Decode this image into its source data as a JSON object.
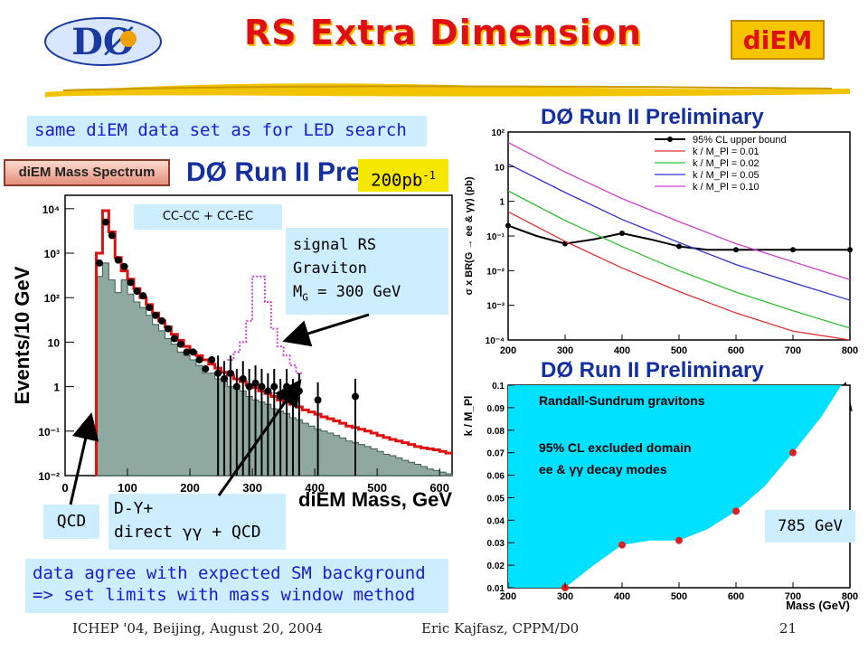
{
  "slide": {
    "title": "RS Extra Dimension",
    "badge": "diEM",
    "logo": "DØ",
    "footer_left": "ICHEP '04, Beijing,  August 20, 2004",
    "footer_center": "Eric Kajfasz, CPPM/D0",
    "page_number": "21"
  },
  "notes": {
    "dataset": "same diEM data set as for LED search",
    "luminosity_base": "200pb",
    "luminosity_sup": "-1",
    "conclusion_line1": "data agree with expected SM background",
    "conclusion_line2": "=> set limits with mass window method"
  },
  "annotations": {
    "signal_line1": "signal RS",
    "signal_line2": "Graviton",
    "signal_line3_pre": "M",
    "signal_line3_sub": "G",
    "signal_line3_post": " = 300 GeV",
    "qcd": "QCD",
    "dy_line1": "D-Y+",
    "dy_line2": "direct γγ + QCD",
    "region": "CC-CC + CC-EC",
    "mass_limit": "785 GeV"
  },
  "colors": {
    "title_red": "#e01010",
    "title_shadow": "#f3c000",
    "note_text": "#1a1ad0",
    "note_bg": "#cdeeff",
    "hist_red": "#e01010",
    "qcd_fill": "#8fa9a1",
    "signal_magenta": "#d040d0",
    "excluded_cyan": "#00e0ff",
    "panel_title_blue": "#1430a0"
  },
  "chart_data": [
    {
      "type": "bar",
      "label_tag": "diEM Mass Spectrum",
      "title": "DØ Run II Preli",
      "xlabel": "diEM Mass, GeV",
      "ylabel": "Events/10 GeV",
      "log_y": true,
      "xlim": [
        0,
        620
      ],
      "ylim": [
        0.01,
        20000
      ],
      "x_ticks": [
        0,
        100,
        200,
        300,
        400,
        500,
        600
      ],
      "y_ticks": [
        0.01,
        0.1,
        1,
        10,
        100,
        1000,
        10000
      ],
      "y_tick_labels": [
        "10⁻²",
        "10⁻¹",
        "1",
        "10",
        "10²",
        "10³",
        "10⁴"
      ],
      "bin_edges_start": 50,
      "bin_width": 10,
      "series": [
        {
          "kind": "fill",
          "values": [
            300,
            600,
            250,
            130,
            250,
            120,
            80,
            60,
            40,
            25,
            18,
            12,
            9,
            6,
            5,
            4,
            3,
            2,
            2,
            1.5,
            1.3,
            1,
            0.9,
            0.8,
            0.6,
            0.5,
            0.45,
            0.4,
            0.32,
            0.28,
            0.25,
            0.2,
            0.18,
            0.15,
            0.13,
            0.11,
            0.1,
            0.09,
            0.08,
            0.07,
            0.06,
            0.055,
            0.05,
            0.045,
            0.04,
            0.035,
            0.03,
            0.028,
            0.025,
            0.022,
            0.02,
            0.018,
            0.016,
            0.014,
            0.013,
            0.012,
            0.011
          ]
        },
        {
          "kind": "step",
          "values": [
            1000,
            9000,
            3000,
            800,
            400,
            260,
            160,
            100,
            70,
            45,
            30,
            22,
            15,
            11,
            8,
            6,
            5,
            4,
            3.2,
            2.6,
            2.1,
            1.8,
            1.5,
            1.3,
            1.1,
            0.95,
            0.8,
            0.7,
            0.6,
            0.5,
            0.45,
            0.4,
            0.35,
            0.3,
            0.27,
            0.24,
            0.21,
            0.19,
            0.17,
            0.15,
            0.13,
            0.12,
            0.11,
            0.1,
            0.09,
            0.08,
            0.072,
            0.065,
            0.06,
            0.055,
            0.05,
            0.045,
            0.042,
            0.04,
            0.038,
            0.035,
            0.032
          ]
        },
        {
          "kind": "signal",
          "values": [
            4,
            6,
            10,
            30,
            300,
            300,
            80,
            20,
            8,
            5,
            3,
            2
          ]
        },
        {
          "kind": "points",
          "x": [
            55,
            65,
            75,
            85,
            95,
            105,
            115,
            125,
            135,
            145,
            155,
            165,
            175,
            185,
            195,
            205,
            215,
            225,
            235,
            245,
            255,
            265,
            275,
            285,
            295,
            305,
            315,
            325,
            335,
            345,
            355,
            365,
            375,
            405,
            465
          ],
          "y": [
            600,
            5000,
            2500,
            700,
            500,
            220,
            140,
            110,
            60,
            40,
            30,
            20,
            12,
            9,
            6,
            6,
            4,
            2.5,
            4,
            2,
            1.5,
            2,
            1,
            1.5,
            1,
            1.2,
            1,
            0.8,
            1,
            0.6,
            1,
            0.6,
            0.8,
            0.5,
            0.6
          ]
        }
      ]
    },
    {
      "type": "line",
      "title": "DØ Run II Preliminary",
      "ylabel": "σ x BR(G → ee & γγ) (pb)",
      "log_y": true,
      "xlim": [
        200,
        800
      ],
      "ylim": [
        0.0001,
        100
      ],
      "x_ticks": [
        200,
        300,
        400,
        500,
        600,
        700,
        800
      ],
      "y_ticks": [
        0.0001,
        0.001,
        0.01,
        0.1,
        1,
        10,
        100
      ],
      "y_tick_labels": [
        "10⁻⁴",
        "10⁻³",
        "10⁻²",
        "10⁻¹",
        "1",
        "10",
        "10²"
      ],
      "legend_placement": "top-right",
      "series": [
        {
          "name": "95% CL upper bound",
          "color": "#000000",
          "x": [
            200,
            250,
            300,
            350,
            400,
            450,
            500,
            550,
            600,
            650,
            700,
            750,
            800
          ],
          "y": [
            0.2,
            0.1,
            0.06,
            0.08,
            0.12,
            0.08,
            0.05,
            0.04,
            0.04,
            0.04,
            0.04,
            0.04,
            0.04
          ]
        },
        {
          "name": "k / M_Pl = 0.01",
          "color": "#e03030",
          "x": [
            200,
            300,
            400,
            500,
            600,
            700,
            800
          ],
          "y": [
            0.5,
            0.07,
            0.012,
            0.0025,
            0.0006,
            0.00018,
            6e-05
          ]
        },
        {
          "name": "k / M_Pl = 0.02",
          "color": "#30c030",
          "x": [
            200,
            300,
            400,
            500,
            600,
            700,
            800
          ],
          "y": [
            2,
            0.28,
            0.05,
            0.01,
            0.0024,
            0.0007,
            0.00022
          ]
        },
        {
          "name": "k / M_Pl = 0.05",
          "color": "#3030d0",
          "x": [
            200,
            300,
            400,
            500,
            600,
            700,
            800
          ],
          "y": [
            12,
            1.8,
            0.3,
            0.065,
            0.015,
            0.0045,
            0.0014
          ]
        },
        {
          "name": "k / M_Pl = 0.10",
          "color": "#d040d0",
          "x": [
            200,
            300,
            400,
            500,
            600,
            700,
            800
          ],
          "y": [
            50,
            7,
            1.2,
            0.26,
            0.06,
            0.018,
            0.0055
          ]
        }
      ]
    },
    {
      "type": "area",
      "title": "DØ Run II Preliminary",
      "xlabel": "Mass (GeV)",
      "ylabel": "k / M_Pl",
      "xlim": [
        200,
        800
      ],
      "ylim": [
        0.01,
        0.1
      ],
      "x_ticks": [
        200,
        300,
        400,
        500,
        600,
        700,
        800
      ],
      "y_ticks": [
        0.01,
        0.02,
        0.03,
        0.04,
        0.05,
        0.06,
        0.07,
        0.08,
        0.09,
        0.1
      ],
      "annotations": [
        "Randall-Sundrum gravitons",
        "95% CL excluded domain",
        "ee & γγ decay modes"
      ],
      "boundary": {
        "x": [
          300,
          350,
          400,
          450,
          500,
          550,
          600,
          650,
          700,
          750,
          785
        ],
        "y": [
          0.01,
          0.02,
          0.029,
          0.031,
          0.031,
          0.036,
          0.044,
          0.055,
          0.07,
          0.086,
          0.1
        ]
      },
      "points": {
        "x": [
          300,
          400,
          500,
          600,
          700
        ],
        "y": [
          0.01,
          0.029,
          0.031,
          0.044,
          0.07
        ]
      }
    }
  ]
}
